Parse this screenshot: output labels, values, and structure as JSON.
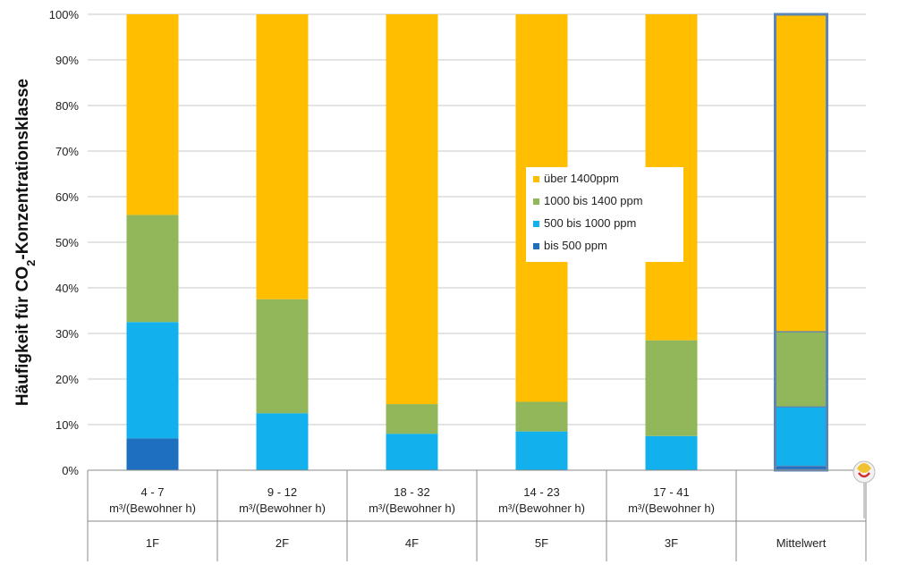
{
  "chart_data": {
    "type": "bar",
    "stacked": true,
    "ylabel": "Häufigkeit für CO",
    "ylabel_sub": "2",
    "ylabel_rest": "-Konzentrationsklasse",
    "ylim": [
      0,
      100
    ],
    "yticks": [
      "0%",
      "10%",
      "20%",
      "30%",
      "40%",
      "50%",
      "60%",
      "70%",
      "80%",
      "90%",
      "100%"
    ],
    "grid": true,
    "legend_position": "center",
    "categories": [
      {
        "range": "4 - 7",
        "unit": "m³/(Bewohner h)",
        "name": "1F"
      },
      {
        "range": "9 - 12",
        "unit": "m³/(Bewohner h)",
        "name": "2F"
      },
      {
        "range": "18 - 32",
        "unit": "m³/(Bewohner h)",
        "name": "4F"
      },
      {
        "range": "14 - 23",
        "unit": "m³/(Bewohner h)",
        "name": "5F"
      },
      {
        "range": "17 - 41",
        "unit": "m³/(Bewohner h)",
        "name": "3F"
      },
      {
        "range": "",
        "unit": "",
        "name": "Mittelwert"
      }
    ],
    "series": [
      {
        "name": "bis 500 ppm",
        "color": "#1f6fc0",
        "values": [
          7,
          0,
          0,
          0,
          0,
          1
        ]
      },
      {
        "name": "500 bis 1000 ppm",
        "color": "#12b0ec",
        "values": [
          25.5,
          12.5,
          8,
          8.5,
          7.5,
          13
        ]
      },
      {
        "name": "1000 bis 1400 ppm",
        "color": "#92b75a",
        "values": [
          23.5,
          25,
          6.5,
          6.5,
          21,
          16.5
        ]
      },
      {
        "name": "über 1400ppm",
        "color": "#ffbf00",
        "values": [
          44,
          62.5,
          85.5,
          85,
          71.5,
          69.5
        ]
      }
    ],
    "legend_order": [
      "über 1400ppm",
      "1000 bis 1400 ppm",
      "500 bis 1000 ppm",
      "bis 500 ppm"
    ],
    "highlight_outline_color": "#5b84b8"
  }
}
